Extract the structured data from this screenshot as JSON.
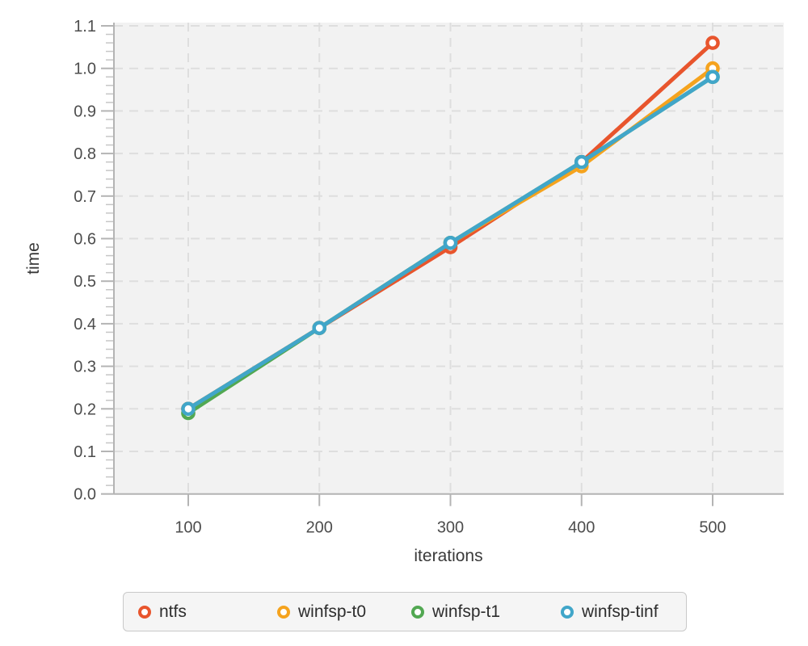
{
  "chart_data": {
    "type": "line",
    "x": [
      100,
      200,
      300,
      400,
      500
    ],
    "series": [
      {
        "name": "ntfs",
        "color": "#E8552D",
        "values": [
          0.2,
          0.39,
          0.58,
          0.78,
          1.06
        ]
      },
      {
        "name": "winfsp-t0",
        "color": "#F5A31E",
        "values": [
          0.2,
          0.39,
          0.59,
          0.77,
          1.0
        ]
      },
      {
        "name": "winfsp-t1",
        "color": "#52A852",
        "values": [
          0.19,
          0.39,
          0.59,
          0.78,
          0.98
        ]
      },
      {
        "name": "winfsp-tinf",
        "color": "#41A6C9",
        "values": [
          0.2,
          0.39,
          0.59,
          0.78,
          0.98
        ]
      }
    ],
    "title": "",
    "xlabel": "iterations",
    "ylabel": "time",
    "xlim": [
      44,
      554
    ],
    "ylim": [
      0,
      1.106
    ],
    "x_ticks": {
      "values": [
        100,
        200,
        300,
        400,
        500
      ],
      "labels": [
        "100",
        "200",
        "300",
        "400",
        "500"
      ]
    },
    "y_ticks": {
      "values": [
        0,
        0.1,
        0.2,
        0.3,
        0.4,
        0.5,
        0.6,
        0.7,
        0.8,
        0.9,
        1.0,
        1.1
      ],
      "labels": [
        "0.0",
        "0.1",
        "0.2",
        "0.3",
        "0.4",
        "0.5",
        "0.6",
        "0.7",
        "0.8",
        "0.9",
        "1.0",
        "1.1"
      ]
    },
    "y_minor_tick_step": 0.02,
    "grid": "dashed",
    "legend_position": "bottom",
    "plot_background": "#F2F2F2",
    "grid_color": "#DEDEDE",
    "axis_color": "#B4B4B4",
    "minor_tick_color": "#C6C6C6",
    "tick_label_color": "#4D4D4D"
  }
}
